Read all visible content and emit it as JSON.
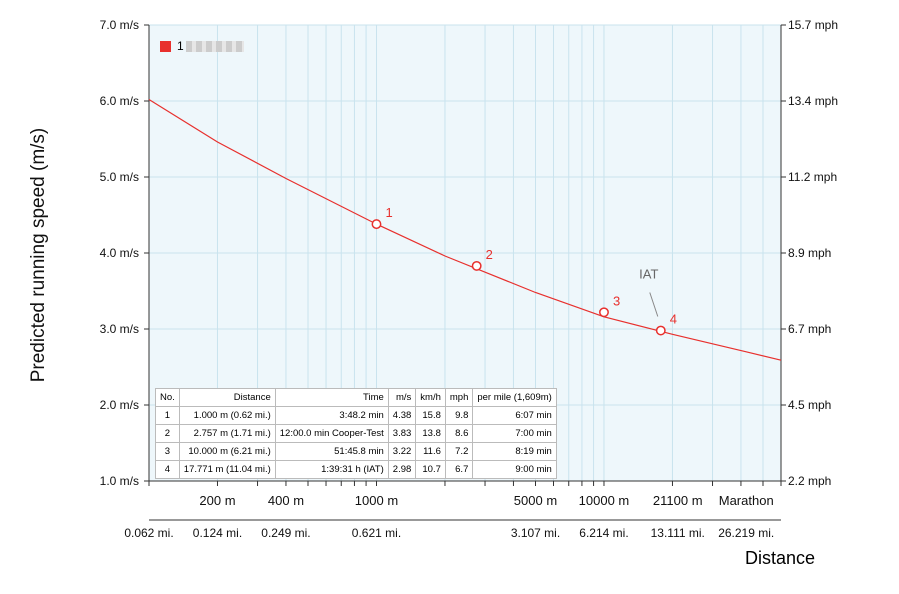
{
  "chart_data": {
    "type": "line",
    "ylabel": "Predicted running speed (m/s)",
    "xlabel": "Distance",
    "x_scale": "log",
    "xlim": [
      100,
      60000
    ],
    "ylim": [
      1.0,
      7.0
    ],
    "y_ticks": [
      1.0,
      2.0,
      3.0,
      4.0,
      5.0,
      6.0,
      7.0
    ],
    "y_tick_labels": [
      "1.0 m/s",
      "2.0 m/s",
      "3.0 m/s",
      "4.0 m/s",
      "5.0 m/s",
      "6.0 m/s",
      "7.0 m/s"
    ],
    "y2_tick_labels": [
      "2.2 mph",
      "4.5 mph",
      "6.7 mph",
      "8.9 mph",
      "11.2 mph",
      "13.4 mph",
      "15.7 mph"
    ],
    "x_ticks_top": [
      {
        "x": 200,
        "label": "200 m"
      },
      {
        "x": 400,
        "label": "400 m"
      },
      {
        "x": 1000,
        "label": "1000 m"
      },
      {
        "x": 5000,
        "label": "5000 m"
      },
      {
        "x": 10000,
        "label": "10000 m"
      },
      {
        "x": 21100,
        "label": "21100 m"
      },
      {
        "x": 42195,
        "label": "Marathon"
      }
    ],
    "x_ticks_bottom": [
      {
        "x": 100,
        "label": "0.062 mi."
      },
      {
        "x": 200,
        "label": "0.124 mi."
      },
      {
        "x": 400,
        "label": "0.249 mi."
      },
      {
        "x": 1000,
        "label": "0.621 mi."
      },
      {
        "x": 5000,
        "label": "3.107 mi."
      },
      {
        "x": 10000,
        "label": "6.214 mi."
      },
      {
        "x": 21100,
        "label": "13.111 mi."
      },
      {
        "x": 42195,
        "label": "26.219 mi."
      }
    ],
    "grid": true,
    "legend": {
      "placement": "top-left",
      "label": "1",
      "color": "#e8302d"
    },
    "series": [
      {
        "color": "#e8302d",
        "x": [
          100,
          200,
          400,
          1000,
          2000,
          5000,
          10000,
          20000,
          42195,
          60000
        ],
        "y": [
          6.02,
          5.46,
          4.98,
          4.38,
          3.96,
          3.48,
          3.16,
          2.93,
          2.7,
          2.59
        ]
      }
    ],
    "points": [
      {
        "label": "1",
        "x": 1000,
        "y": 4.38
      },
      {
        "label": "2",
        "x": 2757,
        "y": 3.83
      },
      {
        "label": "3",
        "x": 10000,
        "y": 3.22
      },
      {
        "label": "4",
        "x": 17771,
        "y": 2.98
      }
    ],
    "annotation": {
      "text": "IAT",
      "x": 17771,
      "y": 2.98
    }
  },
  "table": {
    "headers": [
      "No.",
      "Distance",
      "Time",
      "m/s",
      "km/h",
      "mph",
      "per mile (1,609m)"
    ],
    "rows": [
      [
        "1",
        "1.000 m (0.62 mi.)",
        "3:48.2 min",
        "4.38",
        "15.8",
        "9.8",
        "6:07 min"
      ],
      [
        "2",
        "2.757 m (1.71 mi.)",
        "12:00.0 min Cooper-Test",
        "3.83",
        "13.8",
        "8.6",
        "7:00 min"
      ],
      [
        "3",
        "10.000 m (6.21 mi.)",
        "51:45.8 min",
        "3.22",
        "11.6",
        "7.2",
        "8:19 min"
      ],
      [
        "4",
        "17.771 m (11.04 mi.)",
        "1:39:31 h (IAT)",
        "2.98",
        "10.7",
        "6.7",
        "9:00 min"
      ]
    ]
  }
}
